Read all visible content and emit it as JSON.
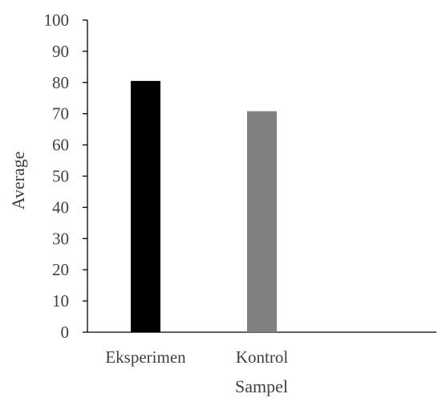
{
  "chart_data": {
    "type": "bar",
    "categories": [
      "Eksperimen",
      "Kontrol",
      ""
    ],
    "values": [
      80.5,
      70.8,
      null
    ],
    "bar_colors": [
      "#000000",
      "#808080"
    ],
    "title": "",
    "xlabel": "Sampel",
    "ylabel": "Average",
    "ylim": [
      0,
      100
    ],
    "y_ticks": [
      "0",
      "10",
      "20",
      "30",
      "40",
      "50",
      "60",
      "70",
      "80",
      "90",
      "100"
    ],
    "grid": false,
    "legend": "none"
  }
}
